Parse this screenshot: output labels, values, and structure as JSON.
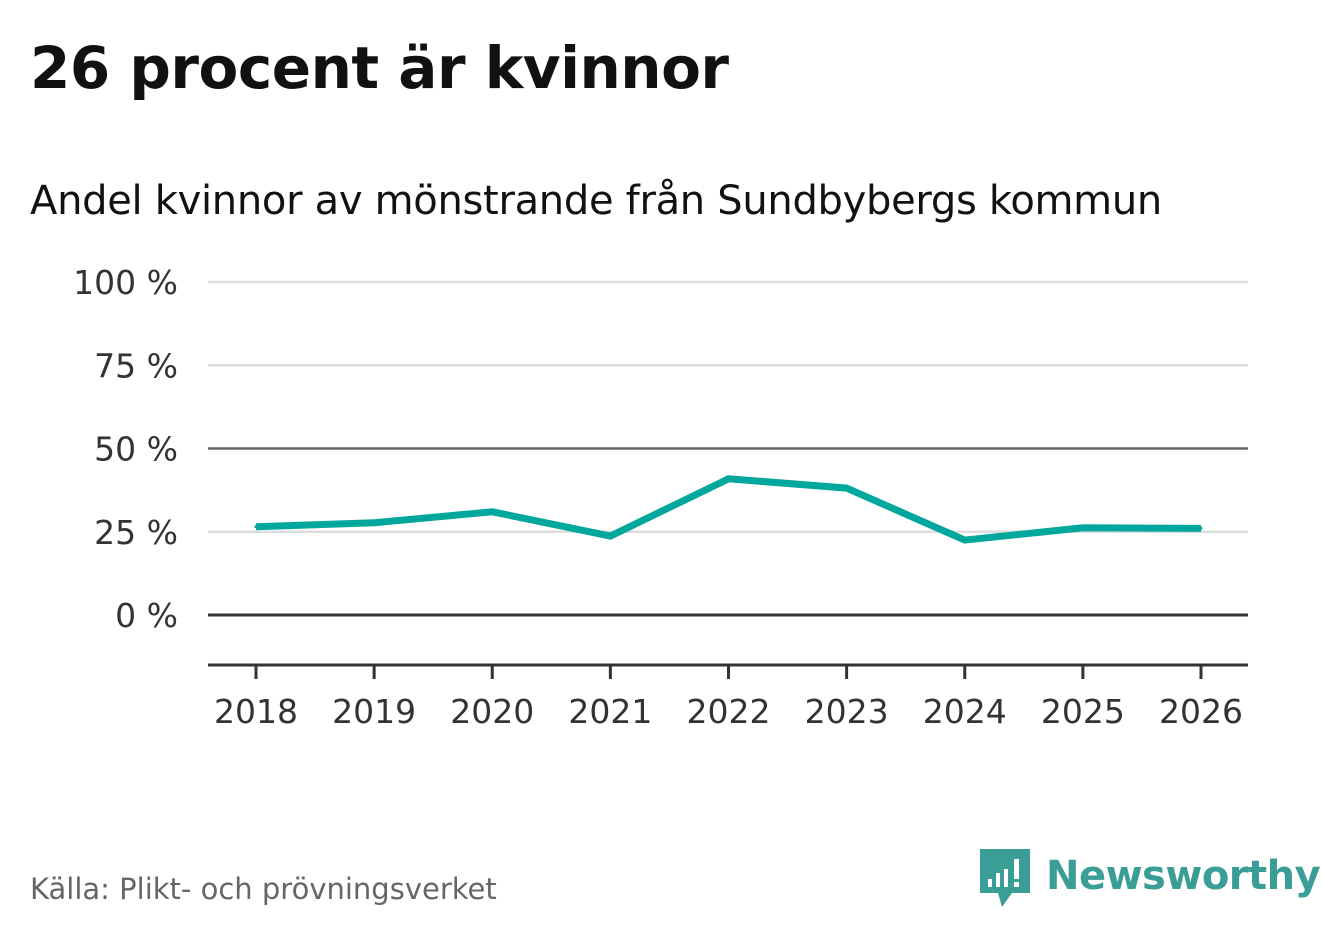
{
  "header": {
    "title": "26 procent är kvinnor",
    "subtitle": "Andel kvinnor av mönstrande från Sundbybergs kommun"
  },
  "footer": {
    "source": "Källa: Plikt- och prövningsverket",
    "brand_name": "Newsworthy"
  },
  "colors": {
    "line": "#00a79d",
    "grid": "#dddddd",
    "reference_line": "#666666",
    "zero_line": "#333333",
    "axis": "#333333",
    "brand": "#3a9e96"
  },
  "icons": {
    "brand_logo": "newsworthy-logo-icon"
  },
  "chart_data": {
    "type": "line",
    "title": "Andel kvinnor av mönstrande från Sundbybergs kommun",
    "xlabel": "",
    "ylabel": "",
    "x": [
      "2018",
      "2019",
      "2020",
      "2021",
      "2022",
      "2023",
      "2024",
      "2025",
      "2026"
    ],
    "series": [
      {
        "name": "Andel kvinnor",
        "values": [
          26.5,
          27.7,
          31.0,
          23.7,
          40.9,
          38.1,
          22.5,
          26.2,
          26.0
        ]
      }
    ],
    "yticks": [
      0,
      25,
      50,
      75,
      100
    ],
    "ytick_labels": [
      "0 %",
      "25 %",
      "50 %",
      "75 %",
      "100 %"
    ],
    "ylim": [
      -15,
      100
    ],
    "reference_lines": [
      50
    ],
    "grid": true,
    "legend": "none"
  }
}
